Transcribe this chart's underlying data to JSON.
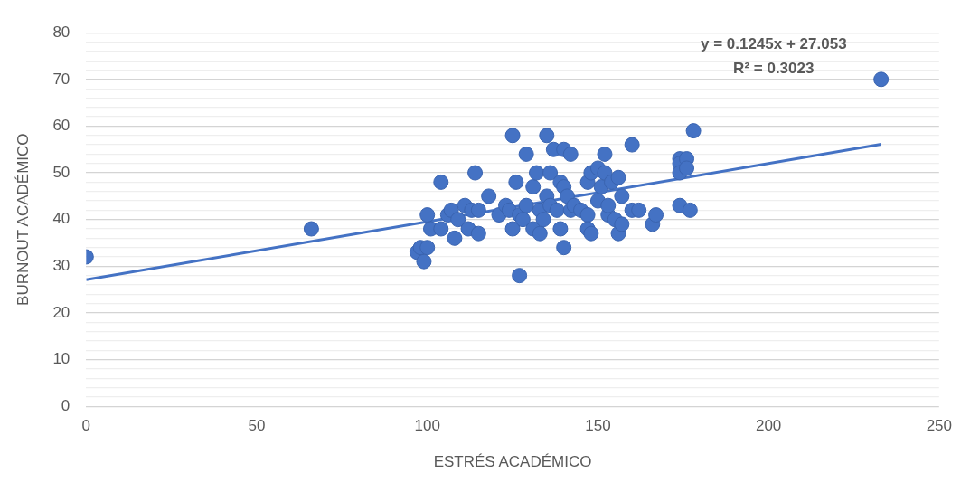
{
  "chart_data": {
    "type": "scatter",
    "xlabel": "ESTRÉS ACADÉMICO",
    "ylabel": "BURNOUT ACADÉMICO",
    "xlim": [
      0,
      250
    ],
    "xticks": [
      0,
      50,
      100,
      150,
      200,
      250
    ],
    "ylim": [
      0,
      80
    ],
    "yticks": [
      0,
      {
        "value": 2,
        "label": null
      },
      {
        "value": 4,
        "label": null
      },
      {
        "value": 6,
        "label": null
      },
      {
        "value": 8,
        "label": null
      },
      10,
      {
        "value": 12,
        "label": null
      },
      {
        "value": 14,
        "label": null
      },
      {
        "value": 16,
        "label": null
      },
      {
        "value": 18,
        "label": null
      },
      20,
      {
        "value": 22,
        "label": null
      },
      {
        "value": 24,
        "label": null
      },
      {
        "value": 26,
        "label": null
      },
      {
        "value": 28,
        "label": null
      },
      30,
      {
        "value": 32,
        "label": null
      },
      {
        "value": 34,
        "label": null
      },
      {
        "value": 36,
        "label": null
      },
      {
        "value": 38,
        "label": null
      },
      40,
      {
        "value": 42,
        "label": null
      },
      {
        "value": 44,
        "label": null
      },
      {
        "value": 46,
        "label": null
      },
      {
        "value": 48,
        "label": null
      },
      50,
      {
        "value": 52,
        "label": null
      },
      {
        "value": 54,
        "label": null
      },
      {
        "value": 56,
        "label": null
      },
      {
        "value": 58,
        "label": null
      },
      60,
      {
        "value": 62,
        "label": null
      },
      {
        "value": 64,
        "label": null
      },
      {
        "value": 66,
        "label": null
      },
      {
        "value": 68,
        "label": null
      },
      70,
      {
        "value": 72,
        "label": null
      },
      {
        "value": 74,
        "label": null
      },
      {
        "value": 76,
        "label": null
      },
      {
        "value": 78,
        "label": null
      },
      80
    ],
    "grid": "y",
    "legend": false,
    "marker": "circle",
    "series": [
      {
        "type": "scatter",
        "color": "#4472c4",
        "x": [
          0,
          66,
          97,
          98,
          99,
          100,
          100,
          101,
          104,
          104,
          106,
          107,
          108,
          109,
          111,
          112,
          113,
          114,
          115,
          115,
          118,
          121,
          123,
          124,
          125,
          125,
          126,
          127,
          127,
          128,
          129,
          129,
          131,
          131,
          132,
          133,
          133,
          134,
          135,
          135,
          136,
          136,
          137,
          138,
          139,
          139,
          140,
          140,
          140,
          141,
          142,
          142,
          143,
          145,
          147,
          147,
          147,
          148,
          148,
          150,
          150,
          151,
          152,
          152,
          153,
          153,
          154,
          155,
          156,
          156,
          157,
          157,
          160,
          160,
          162,
          166,
          167,
          174,
          174,
          174,
          174,
          176,
          176,
          177,
          178,
          233
        ],
        "values": [
          32,
          38,
          33,
          34,
          31,
          34,
          41,
          38,
          48,
          38,
          41,
          42,
          36,
          40,
          43,
          38,
          42,
          50,
          37,
          42,
          45,
          41,
          43,
          42,
          58,
          38,
          48,
          28,
          41,
          40,
          54,
          43,
          38,
          47,
          50,
          37,
          42,
          40,
          58,
          45,
          50,
          43,
          55,
          42,
          48,
          38,
          55,
          34,
          47,
          45,
          54,
          42,
          43,
          42,
          48,
          41,
          38,
          50,
          37,
          51,
          44,
          47,
          54,
          50,
          41,
          43,
          48,
          40,
          49,
          37,
          45,
          39,
          42,
          56,
          42,
          39,
          41,
          53,
          52,
          50,
          43,
          53,
          51,
          42,
          59,
          70
        ]
      },
      {
        "type": "line",
        "color": "#4472c4",
        "x": [
          0,
          233
        ],
        "values": [
          27.1,
          56.1
        ],
        "marker": "none"
      }
    ],
    "annotations": [
      "y = 0.1245x + 27.053",
      "R² = 0.3023"
    ]
  }
}
